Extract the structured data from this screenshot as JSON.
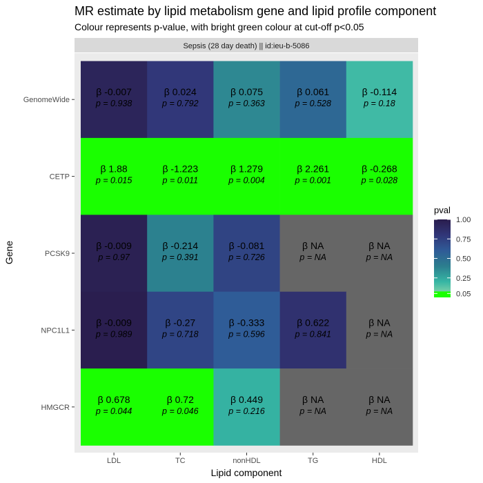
{
  "chart_data": {
    "type": "heatmap",
    "title": "MR estimate by lipid metabolism gene and lipid profile component",
    "subtitle": "Colour represents p-value, with bright green colour at cut-off p<0.05",
    "facet_label": "Sepsis (28 day death) || id:ieu-b-5086",
    "xlabel": "Lipid component",
    "ylabel": "Gene",
    "x_categories": [
      "LDL",
      "TC",
      "nonHDL",
      "TG",
      "HDL"
    ],
    "y_categories": [
      "GenomeWide",
      "CETP",
      "PCSK9",
      "NPC1L1",
      "HMGCR"
    ],
    "cells": [
      {
        "gene": "GenomeWide",
        "component": "LDL",
        "beta": "β -0.007",
        "p": "p = 0.938",
        "pval": 0.938
      },
      {
        "gene": "GenomeWide",
        "component": "TC",
        "beta": "β 0.024",
        "p": "p = 0.792",
        "pval": 0.792
      },
      {
        "gene": "GenomeWide",
        "component": "nonHDL",
        "beta": "β 0.075",
        "p": "p = 0.363",
        "pval": 0.363
      },
      {
        "gene": "GenomeWide",
        "component": "TG",
        "beta": "β 0.061",
        "p": "p = 0.528",
        "pval": 0.528
      },
      {
        "gene": "GenomeWide",
        "component": "HDL",
        "beta": "β -0.114",
        "p": "p = 0.18",
        "pval": 0.18
      },
      {
        "gene": "CETP",
        "component": "LDL",
        "beta": "β 1.88",
        "p": "p = 0.015",
        "pval": 0.015
      },
      {
        "gene": "CETP",
        "component": "TC",
        "beta": "β -1.223",
        "p": "p = 0.011",
        "pval": 0.011
      },
      {
        "gene": "CETP",
        "component": "nonHDL",
        "beta": "β 1.279",
        "p": "p = 0.004",
        "pval": 0.004
      },
      {
        "gene": "CETP",
        "component": "TG",
        "beta": "β 2.261",
        "p": "p = 0.001",
        "pval": 0.001
      },
      {
        "gene": "CETP",
        "component": "HDL",
        "beta": "β -0.268",
        "p": "p = 0.028",
        "pval": 0.028
      },
      {
        "gene": "PCSK9",
        "component": "LDL",
        "beta": "β -0.009",
        "p": "p = 0.97",
        "pval": 0.97
      },
      {
        "gene": "PCSK9",
        "component": "TC",
        "beta": "β -0.214",
        "p": "p = 0.391",
        "pval": 0.391
      },
      {
        "gene": "PCSK9",
        "component": "nonHDL",
        "beta": "β -0.081",
        "p": "p = 0.726",
        "pval": 0.726
      },
      {
        "gene": "PCSK9",
        "component": "TG",
        "beta": "β NA",
        "p": "p = NA",
        "pval": null
      },
      {
        "gene": "PCSK9",
        "component": "HDL",
        "beta": "β NA",
        "p": "p = NA",
        "pval": null
      },
      {
        "gene": "NPC1L1",
        "component": "LDL",
        "beta": "β -0.009",
        "p": "p = 0.989",
        "pval": 0.989
      },
      {
        "gene": "NPC1L1",
        "component": "TC",
        "beta": "β -0.27",
        "p": "p = 0.718",
        "pval": 0.718
      },
      {
        "gene": "NPC1L1",
        "component": "nonHDL",
        "beta": "β -0.333",
        "p": "p = 0.596",
        "pval": 0.596
      },
      {
        "gene": "NPC1L1",
        "component": "TG",
        "beta": "β 0.622",
        "p": "p = 0.841",
        "pval": 0.841
      },
      {
        "gene": "NPC1L1",
        "component": "HDL",
        "beta": "β NA",
        "p": "p = NA",
        "pval": null
      },
      {
        "gene": "HMGCR",
        "component": "LDL",
        "beta": "β 0.678",
        "p": "p = 0.044",
        "pval": 0.044
      },
      {
        "gene": "HMGCR",
        "component": "TC",
        "beta": "β 0.72",
        "p": "p = 0.046",
        "pval": 0.046
      },
      {
        "gene": "HMGCR",
        "component": "nonHDL",
        "beta": "β 0.449",
        "p": "p = 0.216",
        "pval": 0.216
      },
      {
        "gene": "HMGCR",
        "component": "TG",
        "beta": "β NA",
        "p": "p = NA",
        "pval": null
      },
      {
        "gene": "HMGCR",
        "component": "HDL",
        "beta": "β NA",
        "p": "p = NA",
        "pval": null
      }
    ],
    "legend": {
      "title": "pval",
      "ticks": [
        1.0,
        0.75,
        0.5,
        0.25,
        0.05
      ],
      "tick_labels": [
        "1.00",
        "0.75",
        "0.50",
        "0.25",
        "0.05"
      ],
      "range": [
        0,
        1
      ],
      "cutoff": 0.05,
      "cutoff_color": "#1aff00",
      "na_color": "#666666",
      "gradient_colors": [
        "#9cdcaa",
        "#36b6a4",
        "#2c7e8e",
        "#2f5b97",
        "#313678",
        "#2a1d4d"
      ]
    },
    "colors": {
      "panel_background": "#ebebeb",
      "strip_background": "#d9d9d9"
    }
  }
}
